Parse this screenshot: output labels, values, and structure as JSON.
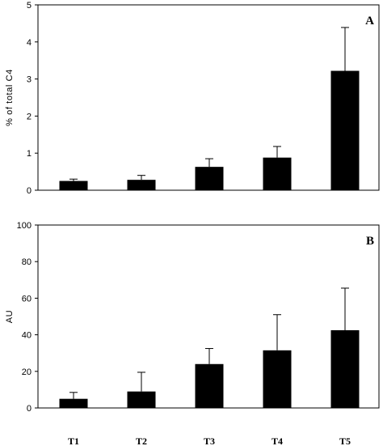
{
  "chart_data": [
    {
      "type": "bar",
      "panel_label": "A",
      "categories": [
        "T1",
        "T2",
        "T3",
        "T4",
        "T5"
      ],
      "values": [
        0.25,
        0.28,
        0.63,
        0.88,
        3.22
      ],
      "errors": [
        0.05,
        0.12,
        0.22,
        0.3,
        1.17
      ],
      "yticks": [
        "0",
        "1",
        "2",
        "3",
        "4",
        "5"
      ],
      "ylim": [
        0,
        5
      ],
      "ylabel": "% of total C4",
      "xlabel": "",
      "title": "",
      "show_category_labels": false,
      "grid": false,
      "bar_color": "#000000"
    },
    {
      "type": "bar",
      "panel_label": "B",
      "categories": [
        "T1",
        "T2",
        "T3",
        "T4",
        "T5"
      ],
      "values": [
        5,
        9,
        24,
        31.5,
        42.5
      ],
      "errors": [
        3.5,
        10.5,
        8.5,
        19.5,
        23
      ],
      "yticks": [
        "0",
        "20",
        "40",
        "60",
        "80",
        "100"
      ],
      "ylim": [
        0,
        100
      ],
      "ylabel": "AU",
      "xlabel": "",
      "title": "",
      "show_category_labels": true,
      "grid": false,
      "bar_color": "#000000"
    }
  ]
}
